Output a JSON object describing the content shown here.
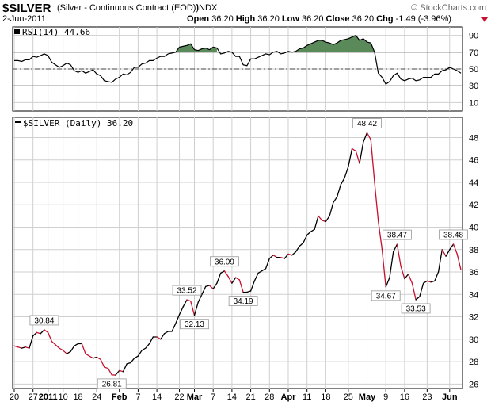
{
  "header": {
    "ticker": "$SILVER",
    "subtitle": "(Silver - Continuous Contract (EOD))",
    "exchange": "INDX",
    "date": "2-Jun-2011",
    "open_label": "Open",
    "open": "36.20",
    "high_label": "High",
    "high": "36.20",
    "low_label": "Low",
    "low": "36.20",
    "close_label": "Close",
    "close": "36.20",
    "chg_label": "Chg",
    "chg": "-1.49 (-3.96%)",
    "credit": "© StockCharts.com",
    "chg_arrow": "down-triangle-icon"
  },
  "colors": {
    "up": "#000000",
    "down": "#c8102e",
    "rsi_fill": "#5a8a5a",
    "grid": "#cfcfcf"
  },
  "chart_data": [
    {
      "type": "line",
      "panel_label": "RSI(14) 44.66",
      "y_ticks": [
        10,
        30,
        50,
        70,
        90
      ],
      "ylim": [
        0,
        100
      ],
      "reference_lines": [
        30,
        50,
        70
      ],
      "values": [
        60,
        60,
        59,
        61,
        61,
        65,
        64,
        66,
        68,
        66,
        58,
        55,
        52,
        54,
        57,
        55,
        48,
        46,
        48,
        45,
        47,
        49,
        44,
        42,
        36,
        35,
        34,
        38,
        40,
        44,
        43,
        46,
        52,
        52,
        56,
        57,
        60,
        60,
        63,
        65,
        65,
        68,
        69,
        70,
        76,
        77,
        78,
        80,
        73,
        72,
        74,
        75,
        73,
        76,
        75,
        68,
        69,
        71,
        70,
        65,
        65,
        55,
        54,
        62,
        62,
        64,
        66,
        68,
        67,
        70,
        71,
        68,
        69,
        71,
        70,
        71,
        74,
        75,
        78,
        80,
        82,
        84,
        84,
        82,
        81,
        79,
        81,
        84,
        85,
        86,
        88,
        90,
        84,
        86,
        82,
        81,
        70,
        45,
        40,
        32,
        35,
        42,
        45,
        38,
        36,
        38,
        39,
        36,
        37,
        40,
        40,
        40,
        44,
        44,
        48,
        49,
        52,
        50,
        48,
        45
      ],
      "x_labels": [
        "20",
        "27",
        "2011",
        "10",
        "18",
        "24",
        "Feb",
        "7",
        "14",
        "22",
        "Mar",
        "7",
        "14",
        "21",
        "28",
        "Apr",
        "11",
        "18",
        "25",
        "May",
        "9",
        "16",
        "23",
        "Jun"
      ]
    },
    {
      "type": "line",
      "panel_label": "$SILVER (Daily) 36.20",
      "y_ticks": [
        26,
        28,
        30,
        32,
        34,
        36,
        38,
        40,
        42,
        44,
        46,
        48
      ],
      "ylim": [
        25.6,
        49.8
      ],
      "values": [
        29.4,
        29.3,
        29.2,
        29.3,
        29.2,
        30.3,
        30.6,
        30.5,
        30.84,
        30.6,
        29.8,
        29.5,
        29.2,
        29.0,
        28.7,
        28.9,
        29.4,
        29.6,
        29.6,
        28.7,
        28.5,
        28.3,
        28.4,
        28.2,
        27.5,
        27.4,
        26.81,
        26.8,
        27.2,
        27.1,
        27.8,
        27.9,
        28.3,
        28.5,
        29.0,
        29.2,
        29.6,
        30.2,
        30.2,
        30.0,
        30.5,
        30.7,
        30.7,
        31.4,
        32.2,
        32.9,
        33.52,
        33.4,
        32.13,
        33.3,
        34.0,
        34.7,
        34.8,
        34.5,
        35.0,
        35.9,
        36.09,
        35.6,
        35.0,
        35.5,
        35.3,
        34.19,
        34.2,
        34.3,
        35.2,
        35.9,
        36.1,
        36.3,
        37.2,
        37.5,
        37.3,
        37.3,
        37.2,
        37.6,
        37.5,
        37.8,
        38.3,
        38.6,
        39.3,
        39.6,
        39.8,
        41.0,
        40.6,
        40.5,
        41.0,
        42.2,
        42.7,
        43.8,
        44.4,
        45.4,
        47.0,
        46.8,
        45.7,
        47.6,
        48.42,
        47.8,
        44.0,
        40.5,
        38.0,
        34.67,
        35.5,
        37.8,
        38.47,
        36.5,
        35.4,
        35.8,
        35.0,
        33.53,
        33.8,
        35.0,
        35.2,
        35.1,
        35.2,
        36.0,
        38.0,
        37.4,
        38.0,
        38.48,
        37.6,
        36.2
      ],
      "annotations": [
        {
          "index": 8,
          "label": "30.84",
          "position": "above"
        },
        {
          "index": 26,
          "label": "26.81",
          "position": "below"
        },
        {
          "index": 46,
          "label": "33.52",
          "position": "above"
        },
        {
          "index": 48,
          "label": "32.13",
          "position": "below"
        },
        {
          "index": 56,
          "label": "36.09",
          "position": "above"
        },
        {
          "index": 61,
          "label": "34.19",
          "position": "below"
        },
        {
          "index": 94,
          "label": "48.42",
          "position": "above"
        },
        {
          "index": 99,
          "label": "34.67",
          "position": "below"
        },
        {
          "index": 102,
          "label": "38.47",
          "position": "above"
        },
        {
          "index": 107,
          "label": "33.53",
          "position": "below"
        },
        {
          "index": 117,
          "label": "38.48",
          "position": "above"
        }
      ]
    }
  ]
}
